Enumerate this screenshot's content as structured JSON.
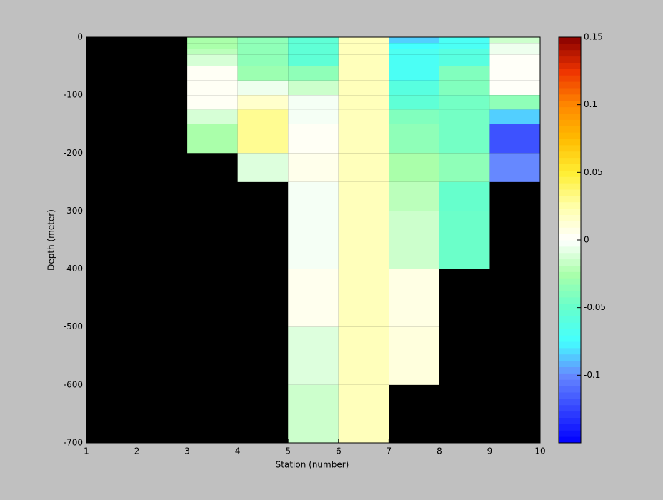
{
  "chart_data": {
    "type": "heatmap",
    "xlabel": "Station (number)",
    "ylabel": "Depth (meter)",
    "x": [
      1,
      2,
      3,
      4,
      5,
      6,
      7,
      8,
      9,
      10
    ],
    "y": [
      0,
      -10,
      -20,
      -30,
      -50,
      -75,
      -100,
      -125,
      -150,
      -200,
      -250,
      -300,
      -400,
      -500,
      -600,
      -700
    ],
    "values": [
      [
        null,
        null,
        -0.025,
        -0.035,
        -0.055,
        0.02,
        -0.085,
        -0.07,
        -0.015
      ],
      [
        null,
        null,
        -0.025,
        -0.035,
        -0.055,
        0.02,
        -0.075,
        -0.07,
        -0.005
      ],
      [
        null,
        null,
        -0.02,
        -0.035,
        -0.055,
        0.02,
        -0.068,
        -0.06,
        -0.005
      ],
      [
        null,
        null,
        -0.012,
        -0.035,
        -0.055,
        0.02,
        -0.07,
        -0.06,
        0.002
      ],
      [
        null,
        null,
        0.003,
        -0.03,
        -0.035,
        0.02,
        -0.07,
        -0.04,
        0.002
      ],
      [
        null,
        null,
        0.003,
        -0.005,
        -0.015,
        0.02,
        -0.06,
        -0.04,
        0.002
      ],
      [
        null,
        null,
        0.003,
        0.015,
        -0.003,
        0.02,
        -0.055,
        -0.045,
        -0.035
      ],
      [
        null,
        null,
        -0.012,
        0.03,
        -0.003,
        0.02,
        -0.04,
        -0.045,
        -0.085
      ],
      [
        null,
        null,
        -0.025,
        0.03,
        0.003,
        0.02,
        -0.035,
        -0.045,
        -0.12
      ],
      [
        null,
        null,
        null,
        -0.01,
        0.006,
        0.02,
        -0.025,
        -0.035,
        -0.1
      ],
      [
        null,
        null,
        null,
        null,
        -0.003,
        0.02,
        -0.02,
        -0.05,
        null
      ],
      [
        null,
        null,
        null,
        null,
        -0.003,
        0.02,
        -0.015,
        -0.048,
        null
      ],
      [
        null,
        null,
        null,
        null,
        0.005,
        0.02,
        0.008,
        null,
        null
      ],
      [
        null,
        null,
        null,
        null,
        -0.01,
        0.02,
        0.01,
        null,
        null
      ],
      [
        null,
        null,
        null,
        null,
        -0.015,
        0.02,
        null,
        null,
        null
      ]
    ],
    "xlim": [
      1,
      10
    ],
    "xticks": [
      1,
      2,
      3,
      4,
      5,
      6,
      7,
      8,
      9,
      10
    ],
    "ylim": [
      -700,
      0
    ],
    "yticks": [
      0,
      -100,
      -200,
      -300,
      -400,
      -500,
      -600,
      -700
    ],
    "clim": [
      -0.15,
      0.15
    ],
    "cticks": [
      0.15,
      0.1,
      0.05,
      0,
      -0.05,
      -0.1
    ],
    "nan_color": "#000000",
    "colormap": [
      "#0000ff",
      "#3344ff",
      "#6688ff",
      "#44ffff",
      "#66ffcc",
      "#aaffaa",
      "#ffffff",
      "#ffffaa",
      "#ffee33",
      "#ffbb00",
      "#ff8800",
      "#ee3300",
      "#880000"
    ]
  }
}
